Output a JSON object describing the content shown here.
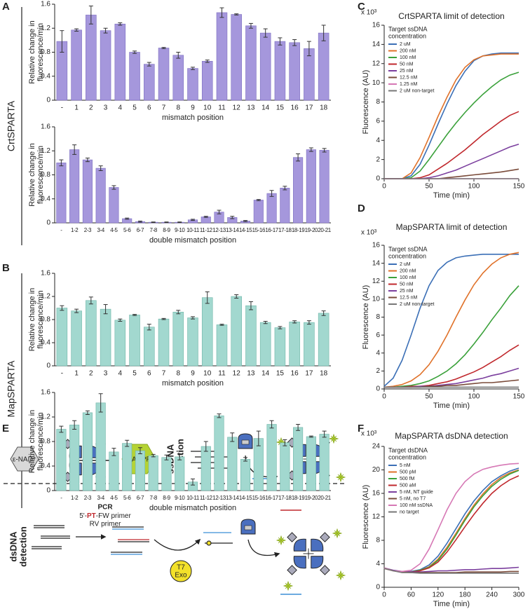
{
  "panel_labels": [
    "A",
    "B",
    "C",
    "D",
    "E",
    "F"
  ],
  "row_labels": [
    "CrtSPARTA",
    "MapSPARTA"
  ],
  "diagram": {
    "nad": "ε-NAD⁺",
    "adpr": "ε-ADPR",
    "ssdna": [
      "ssDNA",
      "detection"
    ],
    "dsdna": [
      "dsDNA",
      "detection"
    ],
    "pcr": "PCR",
    "fw_primer": [
      "5'-",
      "PT",
      "-FW primer"
    ],
    "rv_primer": "RV primer",
    "t7": "T7",
    "exo": "Exo"
  },
  "chart_data": [
    {
      "type": "bar",
      "color": "#a597dc",
      "edge": "#7d6fc0",
      "categories": [
        "-",
        "1",
        "2",
        "3",
        "4",
        "5",
        "6",
        "7",
        "8",
        "9",
        "10",
        "11",
        "12",
        "13",
        "14",
        "15",
        "16",
        "17",
        "18"
      ],
      "values": [
        0.98,
        1.17,
        1.42,
        1.16,
        1.27,
        0.8,
        0.6,
        0.87,
        0.75,
        0.53,
        0.65,
        1.46,
        1.43,
        1.24,
        1.12,
        0.98,
        0.96,
        0.86,
        1.12
      ],
      "errors": [
        0.18,
        0.02,
        0.15,
        0.04,
        0.02,
        0.02,
        0.03,
        0.01,
        0.05,
        0.02,
        0.02,
        0.08,
        0.01,
        0.04,
        0.07,
        0.06,
        0.05,
        0.12,
        0.13
      ],
      "ylim": [
        0,
        1.6
      ],
      "yticks": [
        0,
        0.4,
        0.8,
        1.2,
        1.6
      ],
      "ylabel": [
        "Relative change in",
        "fluorescence/min"
      ],
      "xlabel": "mismatch position"
    },
    {
      "type": "bar",
      "color": "#a597dc",
      "edge": "#7d6fc0",
      "categories": [
        "-",
        "1-2",
        "2-3",
        "3-4",
        "4-5",
        "5-6",
        "6-7",
        "7-8",
        "8-9",
        "9-10",
        "10-11",
        "11-12",
        "12-13",
        "13-14",
        "14-15",
        "15-16",
        "16-17",
        "17-18",
        "18-19",
        "19-20",
        "20-21"
      ],
      "values": [
        1.0,
        1.22,
        1.05,
        0.91,
        0.59,
        0.07,
        0.02,
        0.01,
        0.01,
        0.01,
        0.05,
        0.1,
        0.18,
        0.09,
        0.03,
        0.38,
        0.49,
        0.58,
        1.09,
        1.22,
        1.21
      ],
      "errors": [
        0.05,
        0.08,
        0.03,
        0.04,
        0.03,
        0.01,
        0.01,
        0.005,
        0.005,
        0.005,
        0.01,
        0.01,
        0.03,
        0.02,
        0.01,
        0.01,
        0.05,
        0.03,
        0.06,
        0.03,
        0.03
      ],
      "ylim": [
        0,
        1.6
      ],
      "yticks": [
        0,
        0.4,
        0.8,
        1.2,
        1.6
      ],
      "ylabel": [
        "Relative change in",
        "fluorescence/min"
      ],
      "xlabel": "double mismatch position"
    },
    {
      "type": "bar",
      "color": "#a2d8cf",
      "edge": "#6fb5a8",
      "categories": [
        "-",
        "1",
        "2",
        "3",
        "4",
        "5",
        "6",
        "7",
        "8",
        "9",
        "10",
        "11",
        "12",
        "13",
        "14",
        "15",
        "16",
        "17",
        "18"
      ],
      "values": [
        1.0,
        0.95,
        1.13,
        0.98,
        0.79,
        0.88,
        0.67,
        0.81,
        0.93,
        0.83,
        1.18,
        0.71,
        1.2,
        1.04,
        0.75,
        0.66,
        0.76,
        0.75,
        0.91
      ],
      "errors": [
        0.04,
        0.03,
        0.06,
        0.08,
        0.02,
        0.01,
        0.05,
        0.01,
        0.03,
        0.02,
        0.1,
        0.01,
        0.03,
        0.07,
        0.02,
        0.02,
        0.02,
        0.03,
        0.04
      ],
      "ylim": [
        0,
        1.6
      ],
      "yticks": [
        0,
        0.4,
        0.8,
        1.2,
        1.6
      ],
      "ylabel": [
        "Relative change in",
        "fluorescence/min"
      ],
      "xlabel": "mismatch position"
    },
    {
      "type": "bar",
      "color": "#a2d8cf",
      "edge": "#6fb5a8",
      "categories": [
        "-",
        "1-2",
        "2-3",
        "3-4",
        "4-5",
        "5-6",
        "6-7",
        "7-8",
        "8-9",
        "9-10",
        "10-11",
        "11-12",
        "12-13",
        "13-14",
        "14-15",
        "15-16",
        "16-17",
        "17-18",
        "18-19",
        "19-20",
        "20-21"
      ],
      "values": [
        1.0,
        1.07,
        1.27,
        1.43,
        0.63,
        0.77,
        0.65,
        0.57,
        0.54,
        0.55,
        0.14,
        0.72,
        1.22,
        0.87,
        0.51,
        0.85,
        1.08,
        0.78,
        1.03,
        0.88,
        0.92
      ],
      "errors": [
        0.05,
        0.07,
        0.03,
        0.15,
        0.06,
        0.05,
        0.05,
        0.02,
        0.04,
        0.05,
        0.05,
        0.08,
        0.03,
        0.07,
        0.03,
        0.12,
        0.06,
        0.05,
        0.05,
        0.01,
        0.05
      ],
      "ylim": [
        0,
        1.6
      ],
      "yticks": [
        0,
        0.4,
        0.8,
        1.2,
        1.6
      ],
      "ylabel": [
        "Relative change in",
        "fluorescence/min"
      ],
      "xlabel": "double mismatch position"
    },
    {
      "type": "line",
      "title": "CrtSPARTA limit of detection",
      "y_scale_label": "x 10³",
      "xlabel": "Time (min)",
      "ylabel": "Fluorescence (AU)",
      "legend": "upper left",
      "legend_title": [
        "Target ssDNA",
        "concentration"
      ],
      "x": [
        0,
        10,
        20,
        30,
        40,
        50,
        60,
        70,
        80,
        90,
        100,
        110,
        120,
        130,
        140,
        150
      ],
      "xlim": [
        0,
        150
      ],
      "xticks": [
        0,
        50,
        100,
        150
      ],
      "ylim": [
        0,
        16
      ],
      "yticks": [
        0,
        2,
        4,
        6,
        8,
        10,
        12,
        14,
        16
      ],
      "series": [
        {
          "name": "2 uM",
          "color": "#3b6fb6",
          "values": [
            0,
            0,
            0,
            0.3,
            1.5,
            3.5,
            5.7,
            7.8,
            9.7,
            11.2,
            12.3,
            12.8,
            13.0,
            13.1,
            13.1,
            13.1
          ]
        },
        {
          "name": "200 nM",
          "color": "#e0722a",
          "values": [
            0,
            0,
            0,
            0.6,
            2.2,
            4.3,
            6.5,
            8.5,
            10.3,
            11.6,
            12.4,
            12.8,
            12.9,
            13.0,
            13.0,
            13.0
          ]
        },
        {
          "name": "100 nM",
          "color": "#3aa13a",
          "values": [
            0,
            0,
            0,
            0.1,
            0.8,
            2.0,
            3.3,
            4.6,
            5.8,
            6.9,
            7.9,
            8.8,
            9.6,
            10.3,
            10.8,
            11.1
          ]
        },
        {
          "name": "50 nM",
          "color": "#c0282d",
          "values": [
            0,
            0,
            0,
            0,
            0.1,
            0.4,
            1.0,
            1.6,
            2.3,
            3.0,
            3.8,
            4.6,
            5.3,
            6.0,
            6.6,
            7.0
          ]
        },
        {
          "name": "25 nM",
          "color": "#7b3f9e",
          "values": [
            0,
            0,
            0,
            0,
            0,
            0.1,
            0.3,
            0.6,
            0.9,
            1.3,
            1.7,
            2.1,
            2.5,
            2.9,
            3.3,
            3.6
          ]
        },
        {
          "name": "12.5 nM",
          "color": "#7a4b3a",
          "values": [
            0,
            0,
            0,
            0,
            0,
            0,
            0,
            0.1,
            0.2,
            0.3,
            0.4,
            0.5,
            0.6,
            0.7,
            0.85,
            1.0
          ]
        },
        {
          "name": "1.25 nM",
          "color": "#d678b5",
          "values": [
            0,
            0,
            0,
            0,
            0,
            0,
            0,
            0,
            0,
            0,
            0,
            0,
            0,
            0,
            0,
            0
          ]
        },
        {
          "name": "2 uM non-target",
          "color": "#777777",
          "values": [
            0,
            0,
            0,
            0,
            0,
            0,
            0,
            0,
            0,
            0,
            0,
            0,
            0,
            0,
            0,
            0
          ]
        }
      ]
    },
    {
      "type": "line",
      "title": "MapSPARTA limit of detection",
      "y_scale_label": "x 10³",
      "xlabel": "Time (min)",
      "ylabel": "Fluorescence (AU)",
      "legend": "upper left",
      "legend_title": [
        "Target ssDNA",
        "concentration"
      ],
      "x": [
        0,
        10,
        20,
        30,
        40,
        50,
        60,
        70,
        80,
        90,
        100,
        110,
        120,
        130,
        140,
        150
      ],
      "xlim": [
        0,
        150
      ],
      "xticks": [
        0,
        50,
        100,
        150
      ],
      "ylim": [
        0,
        16
      ],
      "yticks": [
        0,
        2,
        4,
        6,
        8,
        10,
        12,
        14,
        16
      ],
      "series": [
        {
          "name": "2 uM",
          "color": "#3b6fb6",
          "values": [
            0.3,
            1.2,
            3.2,
            6.0,
            9.0,
            11.5,
            13.2,
            14.1,
            14.6,
            14.8,
            14.9,
            15.0,
            15.0,
            15.0,
            15.0,
            15.0
          ]
        },
        {
          "name": "200 nM",
          "color": "#e0722a",
          "values": [
            0.2,
            0.3,
            0.5,
            0.9,
            1.6,
            2.7,
            4.2,
            6.0,
            8.0,
            9.9,
            11.6,
            12.9,
            13.9,
            14.6,
            15.0,
            15.2
          ]
        },
        {
          "name": "100 nM",
          "color": "#3aa13a",
          "values": [
            0.2,
            0.2,
            0.3,
            0.4,
            0.6,
            0.9,
            1.4,
            2.0,
            2.8,
            3.8,
            5.0,
            6.3,
            7.7,
            9.0,
            10.4,
            11.5
          ]
        },
        {
          "name": "50 nM",
          "color": "#c0282d",
          "values": [
            0.2,
            0.2,
            0.2,
            0.3,
            0.3,
            0.4,
            0.6,
            0.8,
            1.1,
            1.5,
            1.9,
            2.4,
            3.0,
            3.6,
            4.3,
            4.9
          ]
        },
        {
          "name": "25 nM",
          "color": "#7b3f9e",
          "values": [
            0.2,
            0.2,
            0.2,
            0.2,
            0.3,
            0.3,
            0.4,
            0.5,
            0.6,
            0.8,
            1.0,
            1.2,
            1.5,
            1.7,
            2.0,
            2.3
          ]
        },
        {
          "name": "12.5 nM",
          "color": "#7a4b3a",
          "values": [
            0.2,
            0.2,
            0.2,
            0.2,
            0.2,
            0.3,
            0.3,
            0.4,
            0.4,
            0.5,
            0.6,
            0.7,
            0.7,
            0.8,
            0.9,
            1.0
          ]
        },
        {
          "name": "2 uM non-target",
          "color": "#777777",
          "values": [
            0.2,
            0.2,
            0.2,
            0.2,
            0.2,
            0.2,
            0.2,
            0.2,
            0.2,
            0.2,
            0.2,
            0.2,
            0.2,
            0.2,
            0.2,
            0.2
          ]
        }
      ]
    },
    {
      "type": "line",
      "title": "MapSPARTA dsDNA detection",
      "y_scale_label": "x 10³",
      "xlabel": "Time (min)",
      "ylabel": "Fluorescence (AU)",
      "legend": "upper left",
      "legend_title": [
        "Target dsDNA",
        "concentration"
      ],
      "x": [
        0,
        20,
        40,
        60,
        80,
        100,
        120,
        140,
        160,
        180,
        200,
        220,
        240,
        260,
        280,
        300
      ],
      "xlim": [
        0,
        300
      ],
      "xticks": [
        0,
        60,
        120,
        180,
        240,
        300
      ],
      "ylim": [
        0,
        24
      ],
      "yticks": [
        0,
        4,
        8,
        12,
        16,
        20,
        24
      ],
      "series": [
        {
          "name": "5 nM",
          "color": "#3b6fb6",
          "values": [
            3.3,
            2.8,
            2.6,
            2.7,
            3.0,
            3.8,
            5.3,
            7.5,
            10.0,
            12.5,
            14.7,
            16.5,
            18.0,
            19.0,
            19.8,
            20.3
          ]
        },
        {
          "name": "500 pM",
          "color": "#e0722a",
          "values": [
            3.3,
            2.8,
            2.6,
            2.6,
            2.9,
            3.5,
            4.8,
            6.8,
            9.2,
            11.7,
            14.0,
            15.9,
            17.5,
            18.7,
            19.5,
            20.0
          ]
        },
        {
          "name": "500 fM",
          "color": "#3aa13a",
          "values": [
            3.3,
            2.8,
            2.6,
            2.6,
            2.9,
            3.4,
            4.6,
            6.5,
            8.9,
            11.4,
            13.7,
            15.6,
            17.2,
            18.4,
            19.3,
            19.9
          ]
        },
        {
          "name": "500 aM",
          "color": "#c0282d",
          "values": [
            3.2,
            2.8,
            2.6,
            2.6,
            2.8,
            3.3,
            4.3,
            6.0,
            8.1,
            10.3,
            12.4,
            14.3,
            16.0,
            17.3,
            18.3,
            19.0
          ]
        },
        {
          "name": "5 nM, NT guide",
          "color": "#7b3f9e",
          "values": [
            3.3,
            2.9,
            2.7,
            2.6,
            2.6,
            2.7,
            2.8,
            2.8,
            2.9,
            3.0,
            3.0,
            3.1,
            3.2,
            3.2,
            3.3,
            3.4
          ]
        },
        {
          "name": "5 nM, no T7",
          "color": "#7a4b3a",
          "values": [
            3.3,
            2.8,
            2.6,
            2.5,
            2.5,
            2.5,
            2.5,
            2.5,
            2.5,
            2.6,
            2.6,
            2.6,
            2.6,
            2.6,
            2.7,
            2.7
          ]
        },
        {
          "name": "100 nM ssDNA",
          "color": "#d678b5",
          "values": [
            3.3,
            2.8,
            2.7,
            2.9,
            4.0,
            6.5,
            9.8,
            13.2,
            16.0,
            18.0,
            19.3,
            20.1,
            20.5,
            20.8,
            21.0,
            21.1
          ]
        },
        {
          "name": "no target",
          "color": "#777777",
          "values": [
            3.2,
            2.8,
            2.5,
            2.5,
            2.4,
            2.4,
            2.4,
            2.4,
            2.4,
            2.4,
            2.4,
            2.4,
            2.4,
            2.4,
            2.4,
            2.4
          ]
        }
      ]
    }
  ]
}
